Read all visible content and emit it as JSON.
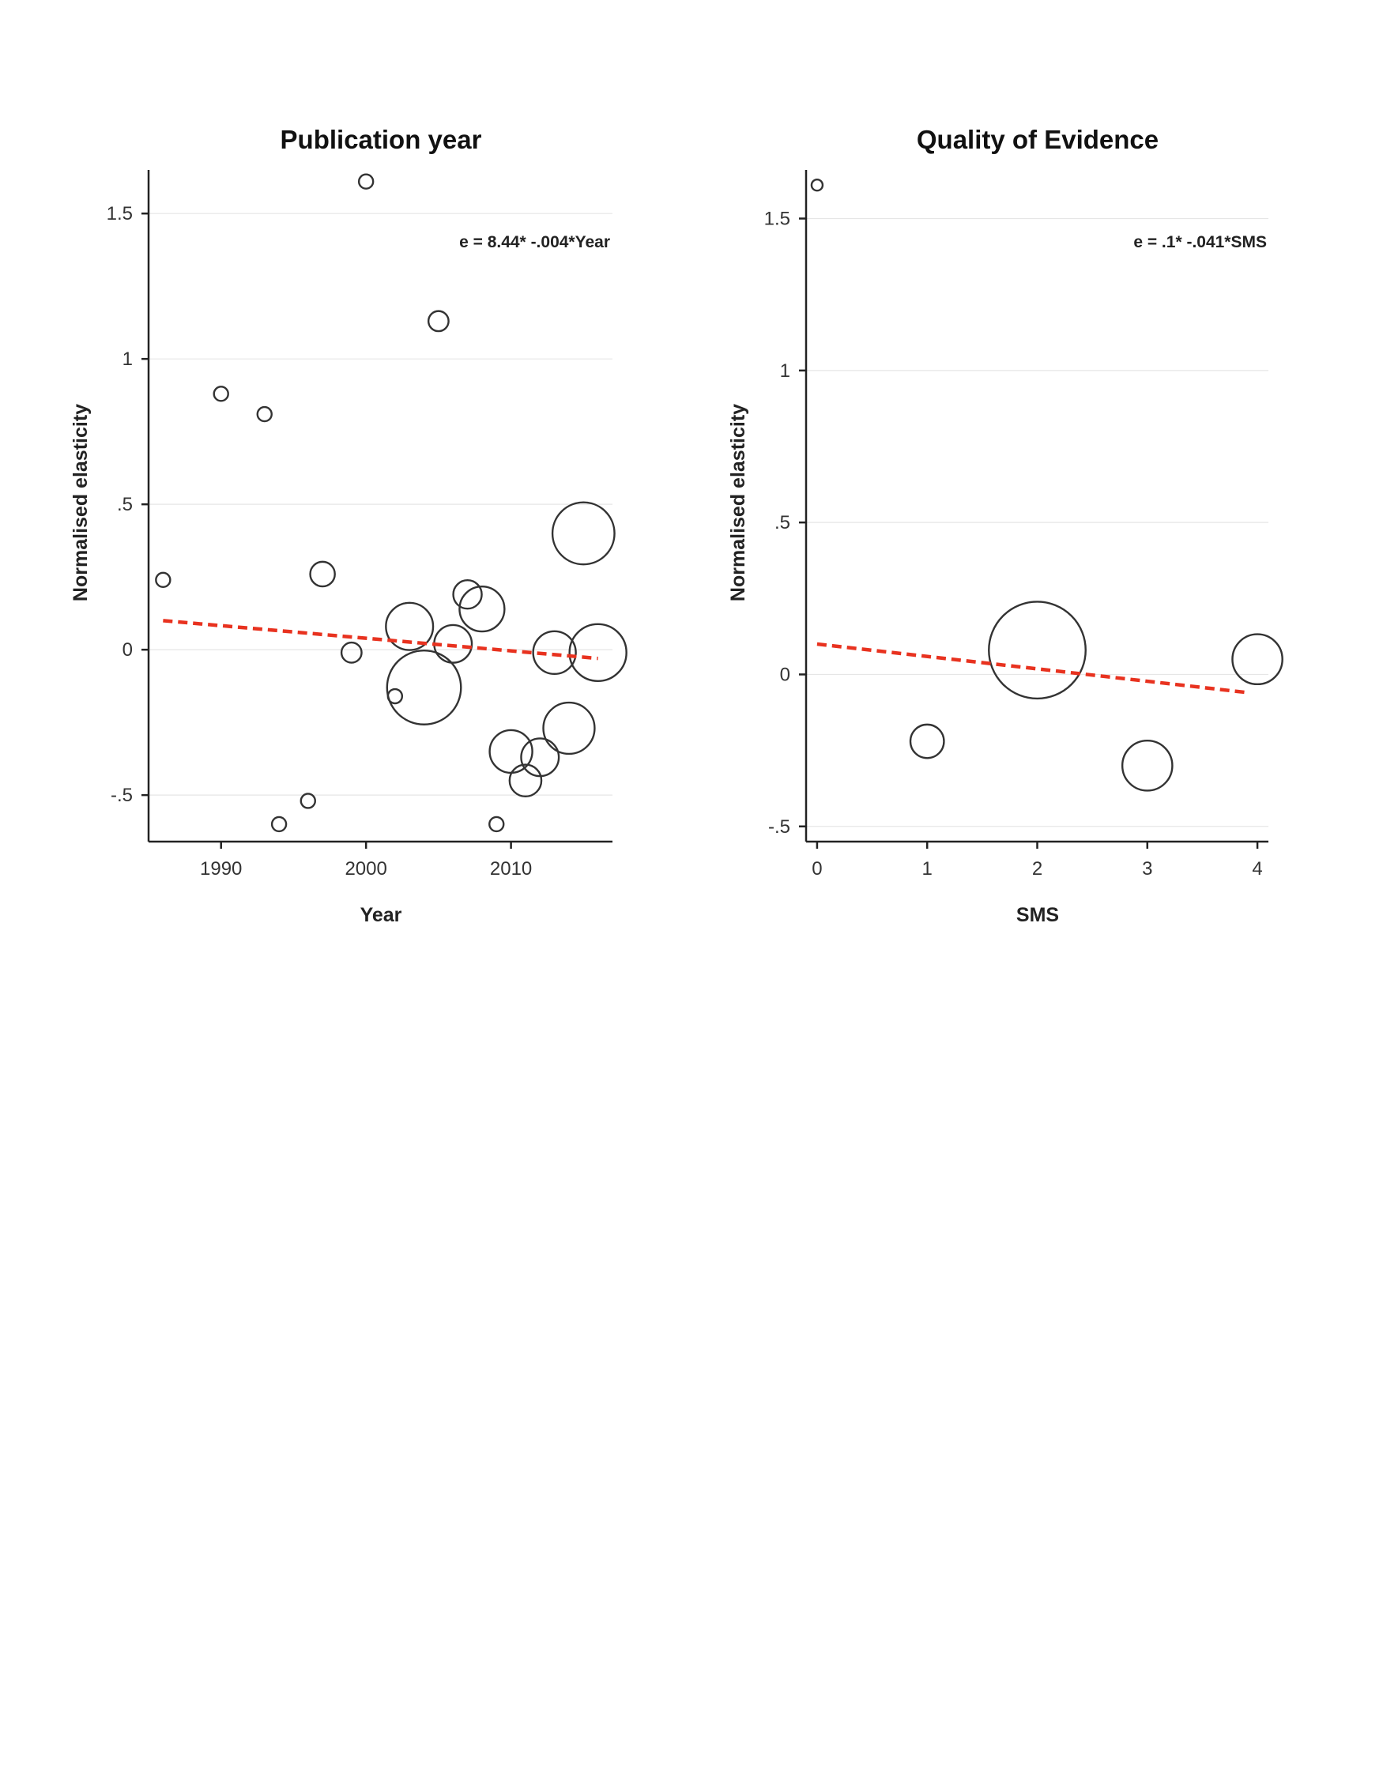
{
  "chart_data": [
    {
      "type": "scatter",
      "title": "Publication year",
      "xlabel": "Year",
      "ylabel": "Normalised elasticity",
      "equation": "e = 8.44* -.004*Year",
      "xlim": [
        1985,
        2017
      ],
      "ylim": [
        -0.66,
        1.65
      ],
      "x_ticks": [
        1990,
        2000,
        2010
      ],
      "x_tick_labels": [
        "1990",
        "2000",
        "2010"
      ],
      "y_ticks": [
        1.5,
        1,
        0.5,
        0,
        -0.5
      ],
      "y_tick_labels": [
        "1.5",
        "1",
        ".5",
        "0",
        "-.5"
      ],
      "grid": true,
      "marker": "hollow circle, size proportional to weight",
      "fit_line": {
        "x": [
          1986,
          2016
        ],
        "y": [
          0.1,
          -0.03
        ],
        "color": "#e8321f",
        "style": "dashed"
      },
      "points": [
        {
          "x": 1986,
          "y": 0.24,
          "weight": 1
        },
        {
          "x": 1990,
          "y": 0.88,
          "weight": 1
        },
        {
          "x": 1993,
          "y": 0.81,
          "weight": 1
        },
        {
          "x": 1994,
          "y": -0.6,
          "weight": 1
        },
        {
          "x": 1996,
          "y": -0.52,
          "weight": 1
        },
        {
          "x": 1997,
          "y": 0.26,
          "weight": 3
        },
        {
          "x": 1999,
          "y": -0.01,
          "weight": 2
        },
        {
          "x": 2000,
          "y": 1.61,
          "weight": 1
        },
        {
          "x": 2002,
          "y": -0.16,
          "weight": 1
        },
        {
          "x": 2003,
          "y": 0.08,
          "weight": 11
        },
        {
          "x": 2004,
          "y": -0.13,
          "weight": 27
        },
        {
          "x": 2005,
          "y": 1.13,
          "weight": 2
        },
        {
          "x": 2006,
          "y": 0.02,
          "weight": 7
        },
        {
          "x": 2007,
          "y": 0.19,
          "weight": 4
        },
        {
          "x": 2008,
          "y": 0.14,
          "weight": 10
        },
        {
          "x": 2009,
          "y": -0.6,
          "weight": 1
        },
        {
          "x": 2010,
          "y": -0.35,
          "weight": 9
        },
        {
          "x": 2011,
          "y": -0.45,
          "weight": 5
        },
        {
          "x": 2012,
          "y": -0.37,
          "weight": 7
        },
        {
          "x": 2013,
          "y": -0.01,
          "weight": 9
        },
        {
          "x": 2014,
          "y": -0.27,
          "weight": 13
        },
        {
          "x": 2015,
          "y": 0.4,
          "weight": 19
        },
        {
          "x": 2016,
          "y": -0.01,
          "weight": 16
        }
      ]
    },
    {
      "type": "scatter",
      "title": "Quality of Evidence",
      "xlabel": "SMS",
      "ylabel": "Normalised elasticity",
      "equation": "e = .1* -.041*SMS",
      "xlim": [
        -0.1,
        4.1
      ],
      "ylim": [
        -0.55,
        1.66
      ],
      "x_ticks": [
        0,
        1,
        2,
        3,
        4
      ],
      "x_tick_labels": [
        "0",
        "1",
        "2",
        "3",
        "4"
      ],
      "y_ticks": [
        1.5,
        1,
        0.5,
        0,
        -0.5
      ],
      "y_tick_labels": [
        "1.5",
        "1",
        ".5",
        "0",
        "-.5"
      ],
      "grid": true,
      "marker": "hollow circle, size proportional to weight",
      "fit_line": {
        "x": [
          0,
          3.92
        ],
        "y": [
          0.1,
          -0.06
        ],
        "color": "#e8321f",
        "style": "dashed"
      },
      "points": [
        {
          "x": 0,
          "y": 1.61,
          "weight": 1
        },
        {
          "x": 1,
          "y": -0.22,
          "weight": 18
        },
        {
          "x": 2,
          "y": 0.08,
          "weight": 150
        },
        {
          "x": 3,
          "y": -0.3,
          "weight": 40
        },
        {
          "x": 4,
          "y": 0.05,
          "weight": 40
        }
      ]
    }
  ]
}
